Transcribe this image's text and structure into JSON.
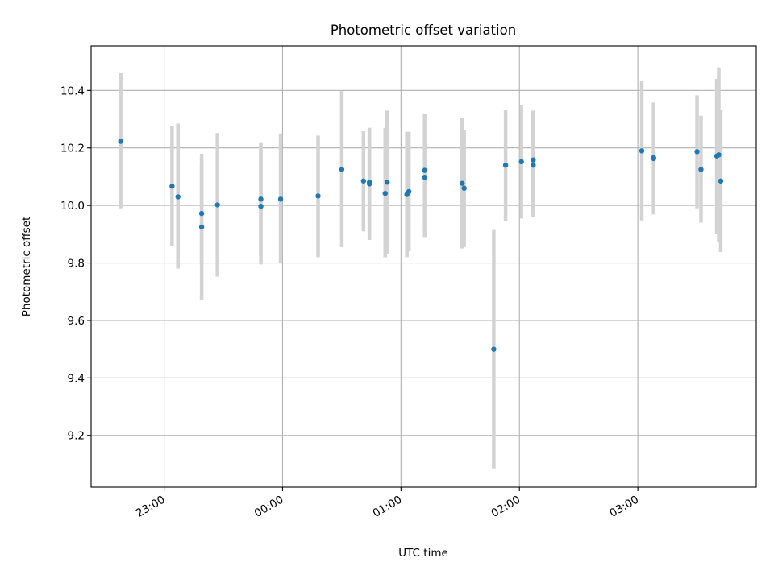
{
  "chart_data": {
    "type": "scatter",
    "title": "Photometric offset variation",
    "xlabel": "UTC time",
    "ylabel": "Photometric offset",
    "xlim": [
      "22:23",
      "04:00"
    ],
    "ylim": [
      9.02,
      10.555
    ],
    "x_ticks": [
      "23:00",
      "00:00",
      "01:00",
      "02:00",
      "03:00"
    ],
    "y_ticks": [
      9.2,
      9.4,
      9.6,
      9.8,
      10.0,
      10.2,
      10.4
    ],
    "grid": true,
    "legend": "none",
    "point_color": "#1f77b4",
    "errorbar_color": "#d3d3d3",
    "points": [
      {
        "x": "22:38",
        "y": 10.223,
        "err_low": 9.99,
        "err_high": 10.46
      },
      {
        "x": "23:04",
        "y": 10.067,
        "err_low": 9.86,
        "err_high": 10.275
      },
      {
        "x": "23:07",
        "y": 10.03,
        "err_low": 9.78,
        "err_high": 10.285
      },
      {
        "x": "23:19",
        "y": 9.925,
        "err_low": 9.67,
        "err_high": 10.18
      },
      {
        "x": "23:19",
        "y": 9.972,
        "err_low": 9.795,
        "err_high": 10.15
      },
      {
        "x": "23:27",
        "y": 10.002,
        "err_low": 9.752,
        "err_high": 10.252
      },
      {
        "x": "23:49",
        "y": 10.022,
        "err_low": 9.825,
        "err_high": 10.22
      },
      {
        "x": "23:49",
        "y": 9.997,
        "err_low": 9.795,
        "err_high": 10.21
      },
      {
        "x": "23:59",
        "y": 10.022,
        "err_low": 9.8,
        "err_high": 10.248
      },
      {
        "x": "00:18",
        "y": 10.033,
        "err_low": 9.82,
        "err_high": 10.243
      },
      {
        "x": "00:30",
        "y": 10.125,
        "err_low": 9.855,
        "err_high": 10.398
      },
      {
        "x": "00:41",
        "y": 10.085,
        "err_low": 9.91,
        "err_high": 10.258
      },
      {
        "x": "00:44",
        "y": 10.075,
        "err_low": 9.88,
        "err_high": 10.27
      },
      {
        "x": "00:44",
        "y": 10.081,
        "err_low": 9.9,
        "err_high": 10.26
      },
      {
        "x": "00:52",
        "y": 10.042,
        "err_low": 9.82,
        "err_high": 10.27
      },
      {
        "x": "00:53",
        "y": 10.081,
        "err_low": 9.83,
        "err_high": 10.33
      },
      {
        "x": "01:03",
        "y": 10.038,
        "err_low": 9.82,
        "err_high": 10.256
      },
      {
        "x": "01:04",
        "y": 10.048,
        "err_low": 9.84,
        "err_high": 10.256
      },
      {
        "x": "01:12",
        "y": 10.122,
        "err_low": 9.92,
        "err_high": 10.32
      },
      {
        "x": "01:12",
        "y": 10.098,
        "err_low": 9.89,
        "err_high": 10.3
      },
      {
        "x": "01:31",
        "y": 10.077,
        "err_low": 9.85,
        "err_high": 10.305
      },
      {
        "x": "01:32",
        "y": 10.06,
        "err_low": 9.855,
        "err_high": 10.263
      },
      {
        "x": "01:47",
        "y": 9.5,
        "err_low": 9.085,
        "err_high": 9.915
      },
      {
        "x": "01:53",
        "y": 10.14,
        "err_low": 9.945,
        "err_high": 10.332
      },
      {
        "x": "02:01",
        "y": 10.152,
        "err_low": 9.955,
        "err_high": 10.348
      },
      {
        "x": "02:07",
        "y": 10.14,
        "err_low": 9.958,
        "err_high": 10.323
      },
      {
        "x": "02:07",
        "y": 10.158,
        "err_low": 9.98,
        "err_high": 10.33
      },
      {
        "x": "03:02",
        "y": 10.19,
        "err_low": 9.948,
        "err_high": 10.432
      },
      {
        "x": "03:08",
        "y": 10.163,
        "err_low": 9.968,
        "err_high": 10.358
      },
      {
        "x": "03:08",
        "y": 10.166,
        "err_low": 9.975,
        "err_high": 10.355
      },
      {
        "x": "03:30",
        "y": 10.187,
        "err_low": 9.99,
        "err_high": 10.383
      },
      {
        "x": "03:32",
        "y": 10.125,
        "err_low": 9.94,
        "err_high": 10.312
      },
      {
        "x": "03:40",
        "y": 10.172,
        "err_low": 9.9,
        "err_high": 10.44
      },
      {
        "x": "03:41",
        "y": 10.176,
        "err_low": 9.872,
        "err_high": 10.48
      },
      {
        "x": "03:42",
        "y": 10.085,
        "err_low": 9.838,
        "err_high": 10.333
      }
    ]
  }
}
